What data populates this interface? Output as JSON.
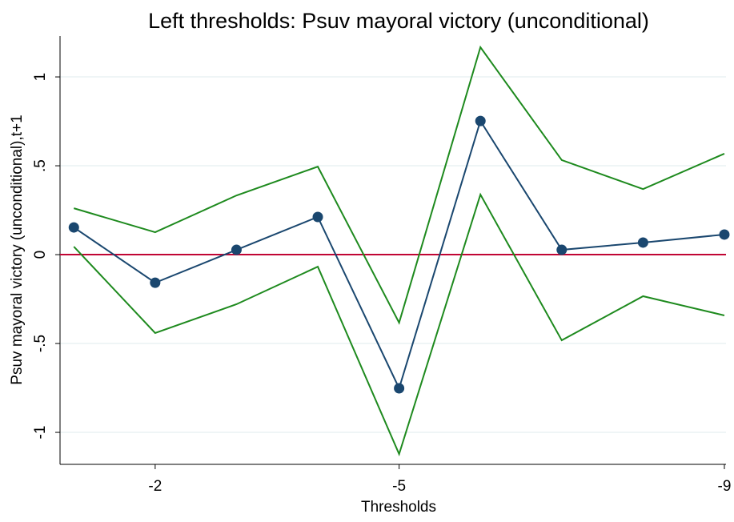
{
  "chart_data": {
    "type": "line",
    "title": "Left thresholds: Psuv mayoral victory (unconditional)",
    "x_label": "Thresholds",
    "y_label": "Psuv mayoral victory (unconditional),t+1",
    "x": [
      -1,
      -2,
      -3,
      -4,
      -5,
      -6,
      -7,
      -8,
      -9
    ],
    "series": [
      {
        "color": "#1a476f",
        "markers": true,
        "values": [
          0.153,
          -0.158,
          0.027,
          0.212,
          -0.752,
          0.752,
          0.027,
          0.068,
          0.113
        ]
      },
      {
        "color": "#1e8a1e",
        "markers": false,
        "values": [
          0.261,
          0.126,
          0.333,
          0.495,
          -0.383,
          1.167,
          0.532,
          0.369,
          0.568
        ]
      },
      {
        "color": "#1e8a1e",
        "markers": false,
        "values": [
          0.045,
          -0.441,
          -0.279,
          -0.068,
          -1.122,
          0.338,
          -0.482,
          -0.234,
          -0.342
        ]
      }
    ],
    "hline": {
      "value": 0,
      "color": "#c10534"
    },
    "xlim": [
      -0.83,
      -9.02
    ],
    "ylim": [
      -1.18,
      1.23
    ],
    "xticks": [
      -2,
      -5,
      -9
    ],
    "yticks": [
      {
        "value": -1,
        "label": "-1"
      },
      {
        "value": -0.5,
        "label": "-.5"
      },
      0,
      {
        "value": 0.5,
        "label": ".5"
      },
      1
    ],
    "grid": true
  }
}
